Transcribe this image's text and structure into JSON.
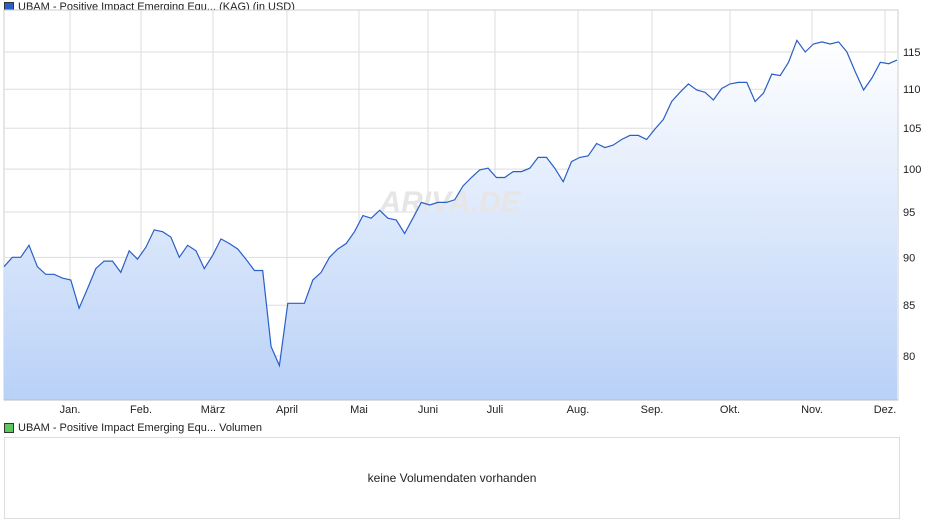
{
  "chart_data": {
    "type": "area",
    "title": "UBAM - Positive Impact Emerging Equ... (KAG) (in USD)",
    "y_scale": "log",
    "ylim": [
      75,
      119
    ],
    "yticks": [
      80,
      85,
      90,
      95,
      100,
      105,
      110,
      115
    ],
    "xticks": [
      "Jan.",
      "Feb.",
      "März",
      "April",
      "Mai",
      "Juni",
      "Juli",
      "Aug.",
      "Sep.",
      "Okt.",
      "Nov.",
      "Dez."
    ],
    "grid": true,
    "series": [
      {
        "name": "UBAM - Positive Impact Emerging Equ... (KAG)",
        "color": "#2a5fc8",
        "values": [
          89.0,
          90.0,
          90.0,
          91.3,
          89.0,
          88.2,
          88.2,
          87.8,
          87.6,
          84.7,
          86.7,
          88.8,
          89.6,
          89.6,
          88.4,
          90.7,
          89.8,
          91.1,
          93.0,
          92.8,
          92.2,
          90.0,
          91.3,
          90.7,
          88.8,
          90.2,
          92.0,
          91.5,
          90.9,
          89.8,
          88.6,
          88.6,
          80.9,
          79.1,
          85.2,
          85.2,
          85.2,
          87.6,
          88.4,
          90.0,
          90.9,
          91.5,
          92.8,
          94.6,
          94.3,
          95.2,
          94.3,
          94.1,
          92.6,
          94.3,
          96.1,
          95.8,
          96.1,
          96.1,
          96.4,
          98.0,
          99.0,
          99.9,
          100.1,
          99.0,
          99.0,
          99.7,
          99.7,
          100.1,
          101.4,
          101.4,
          100.1,
          98.5,
          100.9,
          101.4,
          101.6,
          103.1,
          102.6,
          102.9,
          103.6,
          104.1,
          104.1,
          103.6,
          104.9,
          106.1,
          108.4,
          109.6,
          110.7,
          109.9,
          109.6,
          108.6,
          110.1,
          110.7,
          110.9,
          110.9,
          108.4,
          109.5,
          112.0,
          111.8,
          113.6,
          116.6,
          115.0,
          116.1,
          116.4,
          116.1,
          116.4,
          115.0,
          112.3,
          109.9,
          111.5,
          113.6,
          113.4,
          113.9
        ]
      }
    ]
  },
  "watermark": "ARIVA.DE",
  "volume": {
    "legend": "UBAM - Positive Impact Emerging Equ... Volumen",
    "message": "keine Volumendaten vorhanden",
    "color": "#5cc85c"
  }
}
